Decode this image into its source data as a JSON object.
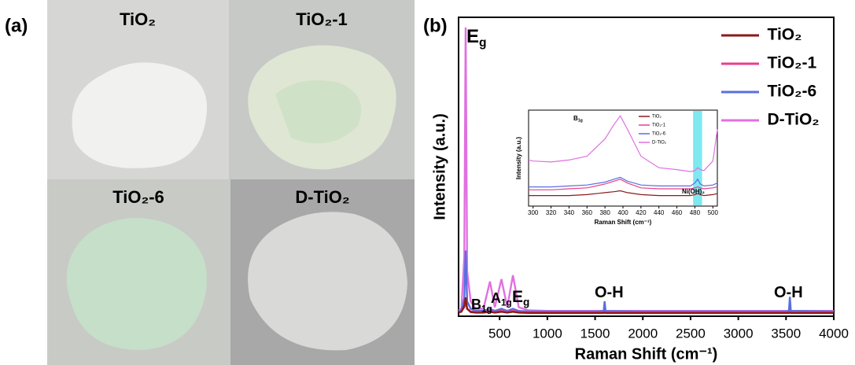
{
  "panel_a": {
    "label": "(a)",
    "tiles": [
      {
        "label": "TiO₂"
      },
      {
        "label": "TiO₂-1"
      },
      {
        "label": "TiO₂-6"
      },
      {
        "label": "D-TiO₂"
      }
    ]
  },
  "chart_data": [
    {
      "type": "line",
      "panel_label": "(b)",
      "xlabel": "Raman Shift (cm⁻¹)",
      "ylabel": "Intensity (a.u.)",
      "x": [
        70,
        100,
        130,
        144,
        160,
        197,
        250,
        330,
        399,
        450,
        519,
        580,
        639,
        700,
        800,
        1000,
        1500,
        1590,
        1600,
        1610,
        2000,
        2500,
        3000,
        3500,
        3530,
        3540,
        3550,
        4000
      ],
      "series": [
        {
          "name": "TiO₂",
          "color": "#8b1a1a",
          "values": [
            1.2,
            1.5,
            3.5,
            6.3,
            2.5,
            1.4,
            1.2,
            1.2,
            1.5,
            1.2,
            1.5,
            1.2,
            1.5,
            1.2,
            1.1,
            1.1,
            1.1,
            1.1,
            1.2,
            1.1,
            1.1,
            1.1,
            1.1,
            1.1,
            1.1,
            1.2,
            1.1,
            1.1
          ]
        },
        {
          "name": "TiO₂-1",
          "color": "#e8408a",
          "values": [
            1.3,
            1.6,
            3,
            4.5,
            2.5,
            1.6,
            1.4,
            1.4,
            1.8,
            1.4,
            1.8,
            1.4,
            1.8,
            1.4,
            1.3,
            1.3,
            1.3,
            1.3,
            1.4,
            1.3,
            1.3,
            1.3,
            1.3,
            1.3,
            1.3,
            1.5,
            1.3,
            1.3
          ]
        },
        {
          "name": "TiO₂-6",
          "color": "#5a6ee0",
          "values": [
            1.5,
            2,
            6,
            22,
            5,
            2.5,
            1.8,
            1.8,
            2.5,
            1.8,
            2.5,
            1.8,
            2.5,
            1.8,
            1.6,
            1.6,
            1.6,
            1.7,
            5,
            1.7,
            1.6,
            1.6,
            1.6,
            1.6,
            1.8,
            6.5,
            1.8,
            1.6
          ]
        },
        {
          "name": "D-TiO₂",
          "color": "#e070e0",
          "values": [
            2,
            2.5,
            20,
            96.6,
            15,
            5,
            2.5,
            2.5,
            11.6,
            3,
            12.4,
            3,
            13.7,
            3,
            2,
            1.8,
            1.8,
            1.8,
            1.9,
            1.8,
            1.8,
            1.8,
            1.8,
            1.8,
            1.8,
            1.9,
            1.8,
            1.8
          ]
        }
      ],
      "xlim": [
        70,
        4000
      ],
      "ylim": [
        0,
        100
      ],
      "xticks": [
        500,
        1000,
        1500,
        2000,
        2500,
        3000,
        3500,
        4000
      ],
      "annotations": [
        {
          "text": "E",
          "sub": "g"
        },
        {
          "text": "B",
          "sub": "1g"
        },
        {
          "text": "A",
          "sub": "1g"
        },
        {
          "text": "E",
          "sub": "g"
        },
        {
          "text": "O-H"
        },
        {
          "text": "O-H"
        }
      ],
      "legend": "upper right"
    },
    {
      "type": "line",
      "xlabel": "Raman Shift (cm⁻¹)",
      "ylabel": "Intensity (a.u.)",
      "x": [
        295,
        300,
        320,
        340,
        360,
        380,
        390,
        397,
        405,
        420,
        440,
        460,
        475,
        480,
        483,
        486,
        490,
        500,
        505
      ],
      "series": [
        {
          "name": "TiO₂",
          "color": "#8b1a1a",
          "values": [
            11,
            11,
            11,
            11,
            12,
            14,
            15,
            16,
            14,
            12,
            11,
            11,
            11,
            12,
            13,
            12,
            11,
            12,
            13
          ]
        },
        {
          "name": "TiO₂-1",
          "color": "#e8408a",
          "values": [
            17,
            17,
            17,
            18,
            19,
            23,
            26,
            28,
            24,
            19,
            18,
            18,
            18,
            19,
            20,
            19,
            18,
            19,
            20
          ]
        },
        {
          "name": "TiO₂-6",
          "color": "#5a6ee0",
          "values": [
            20,
            20,
            20,
            21,
            22,
            25,
            28,
            30,
            26,
            22,
            21,
            21,
            21,
            24,
            28,
            23,
            21,
            22,
            24
          ]
        },
        {
          "name": "D-TiO₂",
          "color": "#e070e0",
          "values": [
            48,
            47,
            46,
            48,
            52,
            70,
            85,
            94,
            80,
            52,
            40,
            38,
            36,
            37,
            40,
            38,
            37,
            47,
            80
          ]
        }
      ],
      "xlim": [
        295,
        505
      ],
      "ylim": [
        0,
        100
      ],
      "xticks": [
        300,
        320,
        340,
        360,
        380,
        400,
        420,
        440,
        460,
        480,
        500
      ],
      "highlight": {
        "range": [
          478,
          488
        ],
        "color": "#7fe8f0"
      },
      "annotations": [
        {
          "text": "B",
          "sub": "1g"
        },
        {
          "text": "Ni(OH)₂"
        }
      ],
      "legend": "upper right"
    }
  ]
}
